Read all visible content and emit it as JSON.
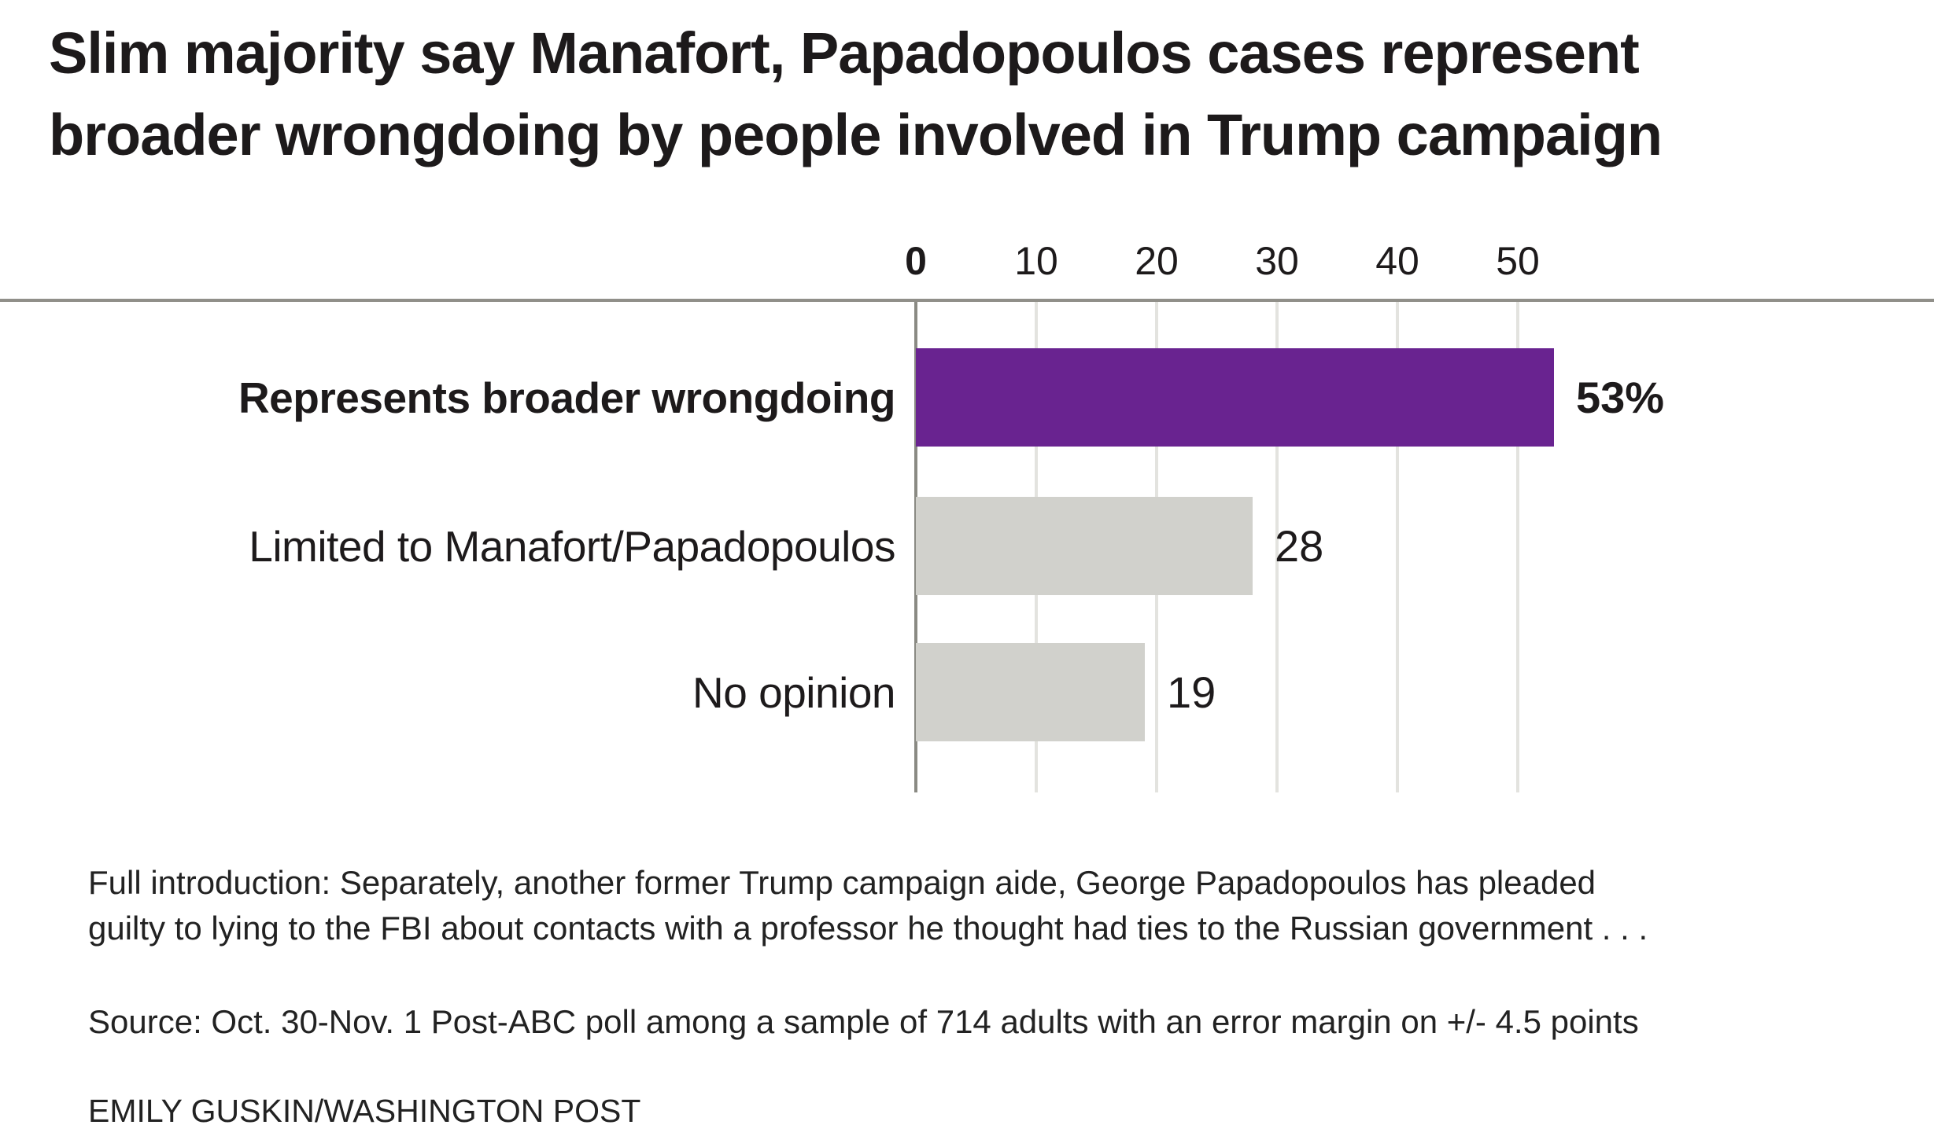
{
  "chart_data": {
    "type": "bar",
    "orientation": "horizontal",
    "title": "Slim majority say Manafort, Papadopoulos cases represent broader wrongdoing by people involved in Trump campaign",
    "title_lines": [
      "Slim majority say Manafort, Papadopoulos cases represent",
      "broader wrongdoing by people involved in Trump campaign"
    ],
    "categories": [
      "Represents broader wrongdoing",
      "Limited to Manafort/Papadopoulos",
      "No opinion"
    ],
    "values": [
      53,
      28,
      19
    ],
    "value_labels": [
      "53%",
      "28",
      "19"
    ],
    "emphasized_row": 0,
    "x_ticks": [
      0,
      10,
      20,
      30,
      40,
      50
    ],
    "xlim": [
      0,
      57
    ],
    "grid": true,
    "legend": "none",
    "bar_colors": [
      "#692390",
      "#d1d1cc",
      "#d1d1cc"
    ],
    "colors": {
      "accent_purple": "#692390",
      "bar_gray": "#d1d1cc",
      "gridline": "#e3e3df",
      "zero_line": "#8a8a83",
      "axis_rule": "#908f89",
      "text": "#1d1a1b"
    }
  },
  "footer": {
    "note_line1": "Full introduction: Separately, another former Trump campaign aide, George Papadopoulos has pleaded",
    "note_line2": "guilty to lying to the FBI about contacts with a professor he thought had ties to the Russian government . . .",
    "source": "Source: Oct. 30-Nov. 1 Post-ABC poll among a sample of 714 adults with an error margin on +/- 4.5 points",
    "credit": "EMILY GUSKIN/WASHINGTON POST"
  }
}
